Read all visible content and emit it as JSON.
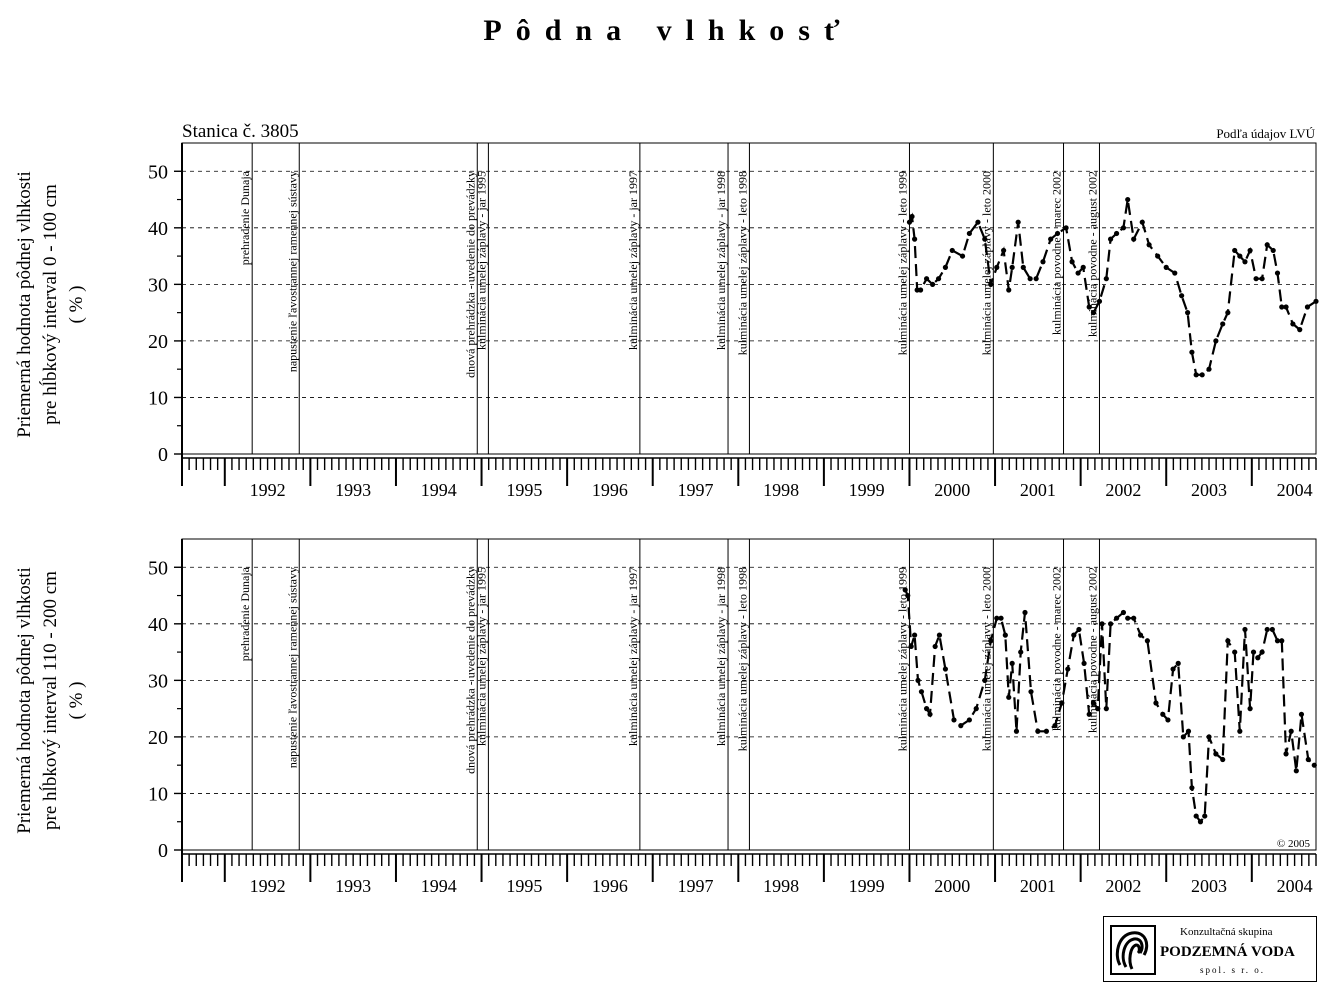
{
  "title": "Pôdna vlhkosť",
  "station": "Stanica č. 3805",
  "source_note": "Podľa údajov LVÚ",
  "copyright": "© 2005",
  "logo": {
    "line1": "Konzultačná skupina",
    "line2": "PODZEMNÁ VODA",
    "line3": "spol. s r. o."
  },
  "chart_data": [
    {
      "type": "line",
      "ylabel_lines": [
        "Priemerná hodnota pôdnej vlhkosti",
        "pre hĺbkový interval 0 - 100 cm",
        "( % )"
      ],
      "ylim": [
        0,
        55
      ],
      "yticks": [
        0,
        10,
        20,
        30,
        40,
        50
      ],
      "xlim": [
        1991.5,
        2004.75
      ],
      "x_tick_labels": [
        "1992",
        "1993",
        "1994",
        "1995",
        "1996",
        "1997",
        "1998",
        "1999",
        "2000",
        "2001",
        "2002",
        "2003",
        "2004"
      ],
      "grid": "dashed horizontal",
      "events": [
        {
          "x": 1992.32,
          "label": "prehradenie Dunaja"
        },
        {
          "x": 1992.87,
          "label": "napustenie ľavostrannej ramennej sústavy"
        },
        {
          "x": 1994.95,
          "label": "dnová prehrádzka - uvedenie do prevádzky"
        },
        {
          "x": 1995.08,
          "label": "kulminácia umelej záplavy - jar 1995"
        },
        {
          "x": 1996.85,
          "label": "kulminácia umelej záplavy - jar 1997"
        },
        {
          "x": 1997.88,
          "label": "kulminácia umelej záplavy - jar 1998"
        },
        {
          "x": 1998.13,
          "label": "kulminácia umelej záplavy - leto 1998"
        },
        {
          "x": 2000.0,
          "label": "kulminácia umelej záplavy - leto 1999"
        },
        {
          "x": 2000.98,
          "label": "kulminácia umelej záplavy - leto 2000"
        },
        {
          "x": 2001.8,
          "label": "kulminácia povodne - marec 2002"
        },
        {
          "x": 2002.22,
          "label": "kulminácia povodne - august 2002"
        }
      ],
      "series": [
        {
          "x": [
            2000.0,
            2000.03,
            2000.06,
            2000.09,
            2000.13,
            2000.2,
            2000.27,
            2000.34,
            2000.42,
            2000.5,
            2000.62,
            2000.7,
            2000.8,
            2000.88,
            2000.95,
            2001.02,
            2001.1,
            2001.16,
            2001.2,
            2001.27,
            2001.33,
            2001.41,
            2001.48,
            2001.56,
            2001.65,
            2001.73,
            2001.83,
            2001.9,
            2001.97,
            2002.03,
            2002.1,
            2002.15,
            2002.22,
            2002.3,
            2002.35,
            2002.42,
            2002.5,
            2002.55,
            2002.62,
            2002.72,
            2002.8,
            2002.9,
            2003.0,
            2003.1,
            2003.18,
            2003.25,
            2003.3,
            2003.35,
            2003.42,
            2003.5,
            2003.58,
            2003.66,
            2003.72,
            2003.8,
            2003.86,
            2003.92,
            2003.98,
            2004.05,
            2004.12,
            2004.18,
            2004.25,
            2004.3,
            2004.35,
            2004.4,
            2004.48,
            2004.56,
            2004.65,
            2004.75
          ],
          "y": [
            41,
            42,
            38,
            29,
            29,
            31,
            30,
            31,
            33,
            36,
            35,
            39,
            41,
            38,
            30,
            33,
            36,
            29,
            33,
            41,
            33,
            31,
            31,
            34,
            38,
            39,
            40,
            34,
            32,
            33,
            26,
            25,
            27,
            31,
            38,
            39,
            40,
            45,
            38,
            41,
            37,
            35,
            33,
            32,
            28,
            25,
            18,
            14,
            14,
            15,
            20,
            23,
            25,
            36,
            35,
            34,
            36,
            31,
            31,
            37,
            36,
            32,
            26,
            26,
            23,
            22,
            26,
            27
          ]
        }
      ]
    },
    {
      "type": "line",
      "ylabel_lines": [
        "Priemerná hodnota pôdnej vlhkosti",
        "pre hĺbkový interval 110 - 200 cm",
        "( % )"
      ],
      "ylim": [
        0,
        55
      ],
      "yticks": [
        0,
        10,
        20,
        30,
        40,
        50
      ],
      "xlim": [
        1991.5,
        2004.75
      ],
      "x_tick_labels": [
        "1992",
        "1993",
        "1994",
        "1995",
        "1996",
        "1997",
        "1998",
        "1999",
        "2000",
        "2001",
        "2002",
        "2003",
        "2004"
      ],
      "grid": "dashed horizontal",
      "events": [
        {
          "x": 1992.32,
          "label": "prehradenie Dunaja"
        },
        {
          "x": 1992.87,
          "label": "napustenie ľavostrannej ramennej sústavy"
        },
        {
          "x": 1994.95,
          "label": "dnová prehrádzka - uvedenie do prevádzky"
        },
        {
          "x": 1995.08,
          "label": "kulminácia umelej záplavy - jar 1995"
        },
        {
          "x": 1996.85,
          "label": "kulminácia umelej záplavy - jar 1997"
        },
        {
          "x": 1997.88,
          "label": "kulminácia umelej záplavy - jar 1998"
        },
        {
          "x": 1998.13,
          "label": "kulminácia umelej záplavy - leto 1998"
        },
        {
          "x": 2000.0,
          "label": "kulminácia umelej záplavy - leto 1999"
        },
        {
          "x": 2000.98,
          "label": "kulminácia umelej záplavy - leto 2000"
        },
        {
          "x": 2001.8,
          "label": "kulminácia povodne - marec 2002"
        },
        {
          "x": 2002.22,
          "label": "kulminácia povodne - august 2002"
        }
      ],
      "series": [
        {
          "x": [
            1999.95,
            1999.98,
            2000.02,
            2000.06,
            2000.1,
            2000.14,
            2000.2,
            2000.24,
            2000.3,
            2000.35,
            2000.42,
            2000.52,
            2000.6,
            2000.7,
            2000.78,
            2000.88,
            2000.95,
            2001.02,
            2001.07,
            2001.12,
            2001.16,
            2001.2,
            2001.25,
            2001.3,
            2001.35,
            2001.42,
            2001.5,
            2001.6,
            2001.7,
            2001.78,
            2001.85,
            2001.92,
            2001.98,
            2002.04,
            2002.1,
            2002.15,
            2002.2,
            2002.25,
            2002.3,
            2002.35,
            2002.42,
            2002.5,
            2002.55,
            2002.62,
            2002.7,
            2002.78,
            2002.88,
            2002.96,
            2003.02,
            2003.08,
            2003.14,
            2003.2,
            2003.26,
            2003.3,
            2003.35,
            2003.4,
            2003.45,
            2003.5,
            2003.58,
            2003.66,
            2003.72,
            2003.8,
            2003.86,
            2003.92,
            2003.98,
            2004.02,
            2004.07,
            2004.12,
            2004.18,
            2004.24,
            2004.3,
            2004.35,
            2004.4,
            2004.46,
            2004.52,
            2004.58,
            2004.66,
            2004.73
          ],
          "y": [
            46,
            45,
            36,
            38,
            30,
            28,
            25,
            24,
            36,
            38,
            32,
            23,
            22,
            23,
            25,
            30,
            37,
            41,
            41,
            38,
            27,
            33,
            21,
            35,
            42,
            28,
            21,
            21,
            22,
            26,
            32,
            38,
            39,
            33,
            24,
            26,
            25,
            40,
            25,
            40,
            41,
            42,
            41,
            41,
            38,
            37,
            26,
            24,
            23,
            32,
            33,
            20,
            21,
            11,
            6,
            5,
            6,
            20,
            17,
            16,
            37,
            35,
            21,
            39,
            25,
            35,
            34,
            35,
            39,
            39,
            37,
            37,
            17,
            21,
            14,
            24,
            16,
            15
          ]
        }
      ]
    }
  ]
}
